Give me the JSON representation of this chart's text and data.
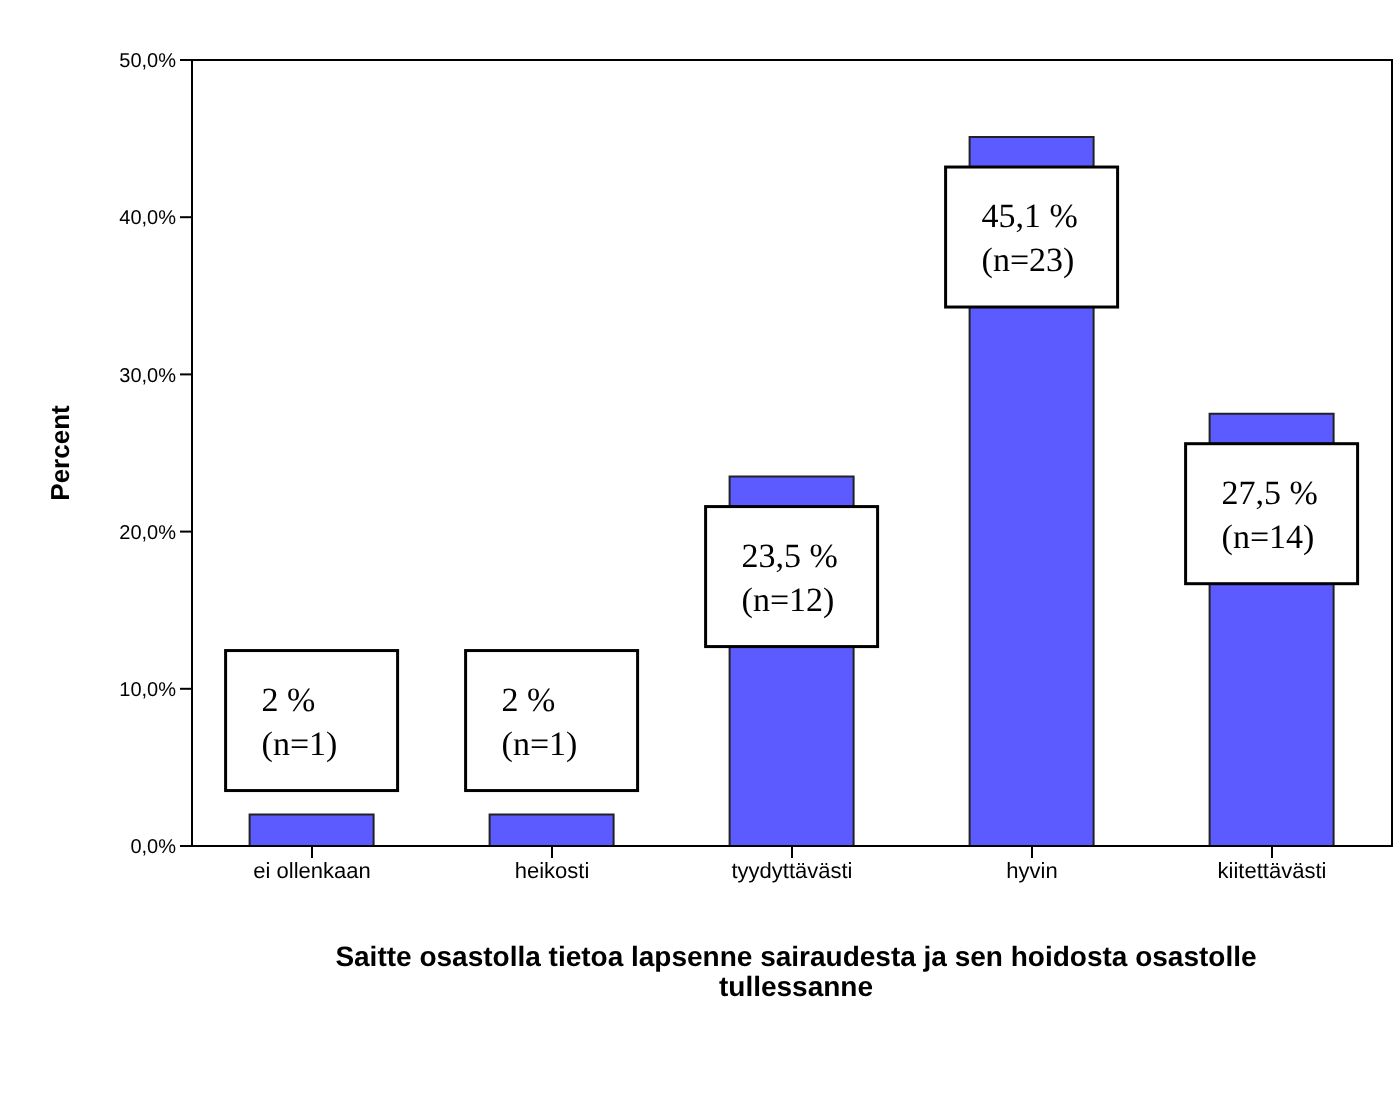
{
  "chart_data": {
    "type": "bar",
    "xlabel": "Saitte osastolla tietoa lapsenne sairaudesta ja sen hoidosta osastolle tullessanne",
    "ylabel": "Percent",
    "categories": [
      "ei ollenkaan",
      "heikosti",
      "tyydyttävästi",
      "hyvin",
      "kiitettävästi"
    ],
    "values": [
      2,
      2,
      23.5,
      45.1,
      27.5
    ],
    "value_labels": [
      "2 %\n(n=1)",
      "2 %\n(n=1)",
      "23,5 %\n(n=12)",
      "45,1 %\n(n=23)",
      "27,5 %\n(n=14)"
    ],
    "color": "#5b5bff",
    "ylim": [
      0,
      50
    ],
    "yticks": [
      {
        "value": 0,
        "label": "0,0%"
      },
      {
        "value": 10,
        "label": "10,0%"
      },
      {
        "value": 20,
        "label": "20,0%"
      },
      {
        "value": 30,
        "label": "30,0%"
      },
      {
        "value": 40,
        "label": "40,0%"
      },
      {
        "value": 50,
        "label": "50,0%"
      }
    ],
    "grid": false,
    "legend": false
  }
}
